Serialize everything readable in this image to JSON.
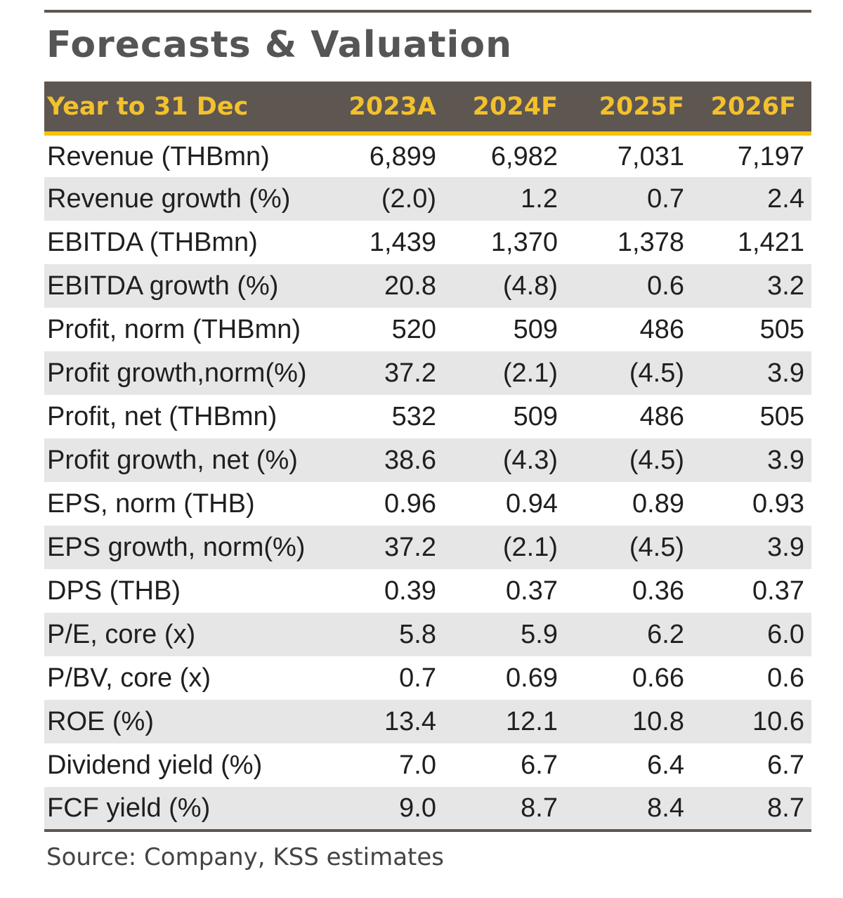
{
  "title": "Forecasts & Valuation",
  "header": {
    "label": "Year to 31 Dec",
    "years": [
      "2023A",
      "2024F",
      "2025F",
      "2026F"
    ]
  },
  "rows": [
    {
      "label": "Revenue (THBmn)",
      "values": [
        "6,899",
        "6,982",
        "7,031",
        "7,197"
      ]
    },
    {
      "label": "Revenue growth (%)",
      "values": [
        "(2.0)",
        "1.2",
        "0.7",
        "2.4"
      ]
    },
    {
      "label": "EBITDA (THBmn)",
      "values": [
        "1,439",
        "1,370",
        "1,378",
        "1,421"
      ]
    },
    {
      "label": "EBITDA growth (%)",
      "values": [
        "20.8",
        "(4.8)",
        "0.6",
        "3.2"
      ]
    },
    {
      "label": "Profit, norm (THBmn)",
      "values": [
        "520",
        "509",
        "486",
        "505"
      ]
    },
    {
      "label": "Profit growth,norm(%)",
      "values": [
        "37.2",
        "(2.1)",
        "(4.5)",
        "3.9"
      ]
    },
    {
      "label": "Profit, net (THBmn)",
      "values": [
        "532",
        "509",
        "486",
        "505"
      ]
    },
    {
      "label": "Profit growth, net (%)",
      "values": [
        "38.6",
        "(4.3)",
        "(4.5)",
        "3.9"
      ]
    },
    {
      "label": "EPS, norm (THB)",
      "values": [
        "0.96",
        "0.94",
        "0.89",
        "0.93"
      ]
    },
    {
      "label": "EPS growth, norm(%)",
      "values": [
        "37.2",
        "(2.1)",
        "(4.5)",
        "3.9"
      ]
    },
    {
      "label": "DPS (THB)",
      "values": [
        "0.39",
        "0.37",
        "0.36",
        "0.37"
      ]
    },
    {
      "label": "P/E, core (x)",
      "values": [
        "5.8",
        "5.9",
        "6.2",
        "6.0"
      ]
    },
    {
      "label": "P/BV, core (x)",
      "values": [
        "0.7",
        "0.69",
        "0.66",
        "0.6"
      ]
    },
    {
      "label": "ROE (%)",
      "values": [
        "13.4",
        "12.1",
        "10.8",
        "10.6"
      ]
    },
    {
      "label": "Dividend yield (%)",
      "values": [
        "7.0",
        "6.7",
        "6.4",
        "6.7"
      ]
    },
    {
      "label": "FCF yield (%)",
      "values": [
        "9.0",
        "8.7",
        "8.4",
        "8.7"
      ]
    }
  ],
  "source": "Source: Company, KSS estimates",
  "colors": {
    "header_bg": "#5e5650",
    "header_text": "#f2c12e",
    "accent_rule": "#f5c400",
    "stripe": "#e6e6e6"
  }
}
